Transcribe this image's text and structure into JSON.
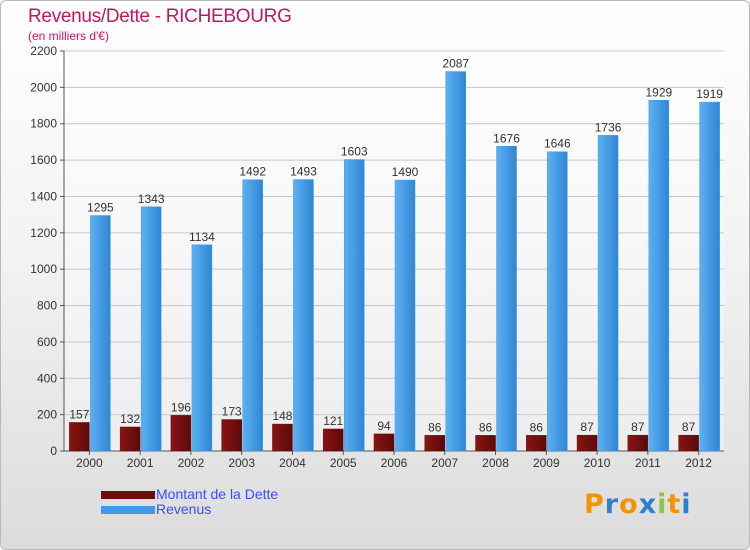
{
  "header": {
    "title": "Revenus/Dette - RICHEBOURG",
    "subtitle": "(en milliers d'€)"
  },
  "colors": {
    "title": "#c2185b",
    "dette": "#6e0d0d",
    "revenus": "#3e9ae6",
    "legend_text": "#3b4cff"
  },
  "chart_data": {
    "type": "bar",
    "title": "Revenus/Dette - RICHEBOURG",
    "subtitle": "(en milliers d'€)",
    "categories": [
      "2000",
      "2001",
      "2002",
      "2003",
      "2004",
      "2005",
      "2006",
      "2007",
      "2008",
      "2009",
      "2010",
      "2011",
      "2012"
    ],
    "series": [
      {
        "name": "Montant de la Dette",
        "values": [
          157,
          132,
          196,
          173,
          148,
          121,
          94,
          86,
          86,
          86,
          87,
          87,
          87
        ]
      },
      {
        "name": "Revenus",
        "values": [
          1295,
          1343,
          1134,
          1492,
          1493,
          1603,
          1490,
          2087,
          1676,
          1646,
          1736,
          1929,
          1919
        ]
      }
    ],
    "ylim": [
      0,
      2200
    ],
    "yticks": [
      0,
      200,
      400,
      600,
      800,
      1000,
      1200,
      1400,
      1600,
      1800,
      2000,
      2200
    ],
    "grid": true,
    "legend": "bottom-left"
  },
  "legend": {
    "items": [
      {
        "label": "Montant de la Dette",
        "color": "#6e0d0d"
      },
      {
        "label": "Revenus",
        "color": "#3e9ae6"
      }
    ]
  },
  "logo": {
    "letters": [
      "P",
      "r",
      "o",
      "x",
      "i",
      "t",
      "i"
    ],
    "colors": [
      "#f29400",
      "#2e7fd1",
      "#f29400",
      "#2e7fd1",
      "#8dc63f",
      "#f29400",
      "#2e7fd1"
    ]
  }
}
